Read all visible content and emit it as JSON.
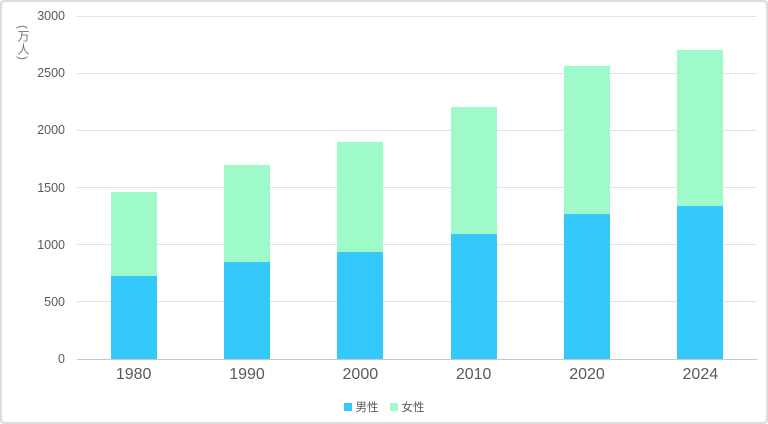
{
  "window": {
    "background": "#ffffff",
    "border_color": "#dcdcdc"
  },
  "chart_data": {
    "type": "bar",
    "stacked": true,
    "title": "",
    "xlabel": "",
    "ylabel": "(万人)",
    "categories": [
      "1980",
      "1990",
      "2000",
      "2010",
      "2020",
      "2024"
    ],
    "series": [
      {
        "name": "男性",
        "color": "#35c8fa",
        "values": [
          725,
          850,
          940,
          1090,
          1265,
          1335
        ]
      },
      {
        "name": "女性",
        "color": "#9efac8",
        "values": [
          735,
          850,
          955,
          1110,
          1300,
          1370
        ]
      }
    ],
    "totals": [
      1460,
      1700,
      1895,
      2200,
      2565,
      2705
    ],
    "ylim": [
      0,
      3000
    ],
    "ytick_step": 500,
    "grid": true,
    "legend_position": "bottom"
  },
  "style": {
    "grid_color": "#e2e2e2",
    "baseline_color": "#c8c8c8",
    "tick_text_color": "#595959"
  }
}
